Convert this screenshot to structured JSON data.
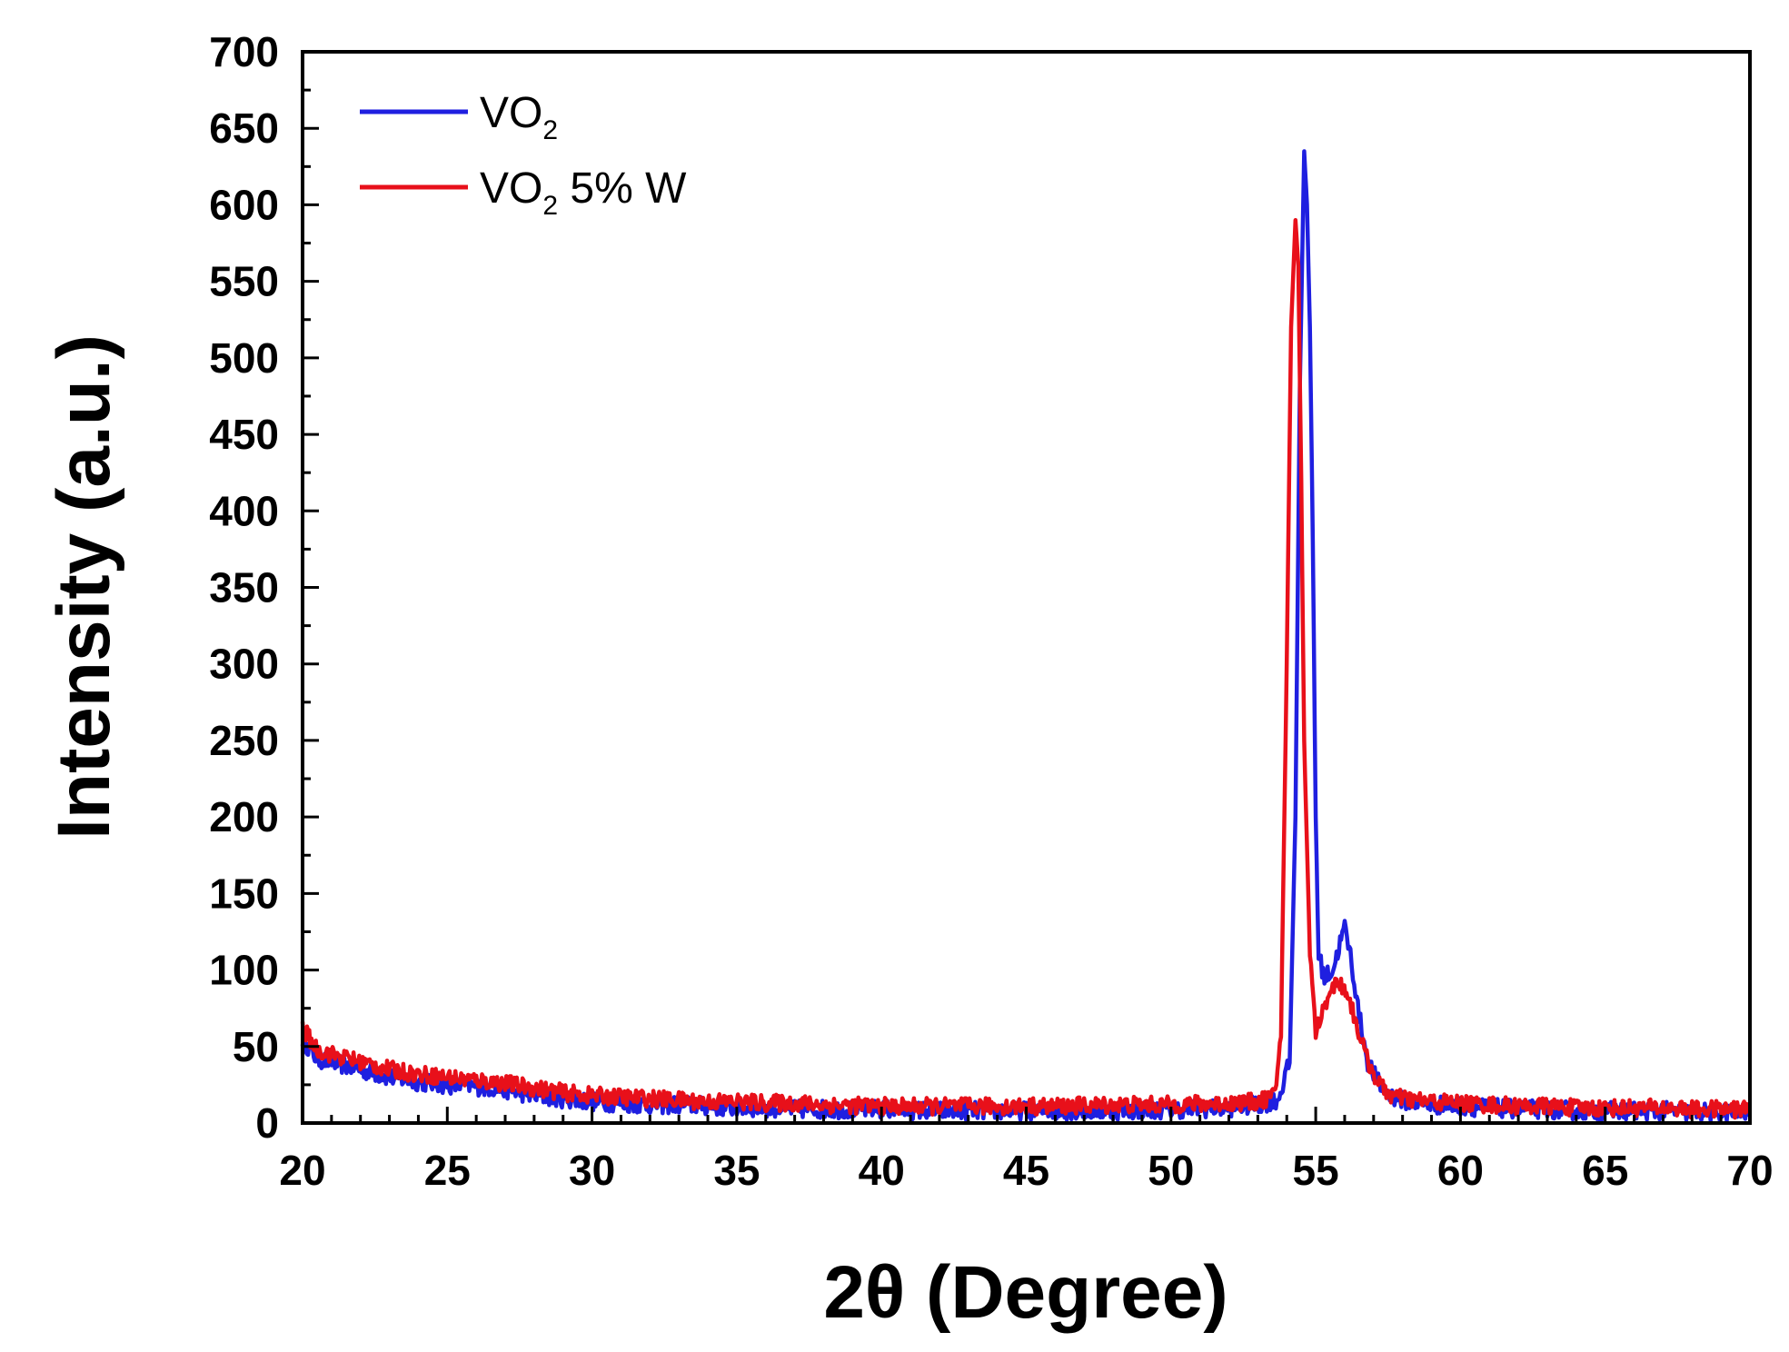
{
  "chart_data": {
    "type": "line",
    "title": "",
    "xlabel": "2θ (Degree)",
    "ylabel": "Intensity (a.u.)",
    "xlim": [
      20,
      70
    ],
    "ylim": [
      0,
      700
    ],
    "xticks": [
      20,
      25,
      30,
      35,
      40,
      45,
      50,
      55,
      60,
      65,
      70
    ],
    "yticks": [
      0,
      50,
      100,
      150,
      200,
      250,
      300,
      350,
      400,
      450,
      500,
      550,
      600,
      650,
      700
    ],
    "grid": false,
    "legend": {
      "placement": "top-left"
    },
    "series": [
      {
        "name": "VO2",
        "legend_main": "VO",
        "legend_sub": "2",
        "legend_suffix": "",
        "color": "#1f1fe0",
        "points": [
          [
            20,
            55
          ],
          [
            20.5,
            42
          ],
          [
            21,
            40
          ],
          [
            22,
            35
          ],
          [
            23,
            30
          ],
          [
            24,
            27
          ],
          [
            25,
            25
          ],
          [
            26,
            24
          ],
          [
            27,
            22
          ],
          [
            28,
            18
          ],
          [
            29,
            16
          ],
          [
            30,
            14
          ],
          [
            31,
            13
          ],
          [
            32,
            12
          ],
          [
            33,
            12
          ],
          [
            34,
            11
          ],
          [
            35,
            10
          ],
          [
            36,
            10
          ],
          [
            37,
            9
          ],
          [
            38,
            9
          ],
          [
            40,
            9
          ],
          [
            42,
            8
          ],
          [
            44,
            8
          ],
          [
            46,
            8
          ],
          [
            48,
            8
          ],
          [
            50,
            9
          ],
          [
            52,
            10
          ],
          [
            53,
            12
          ],
          [
            53.7,
            15
          ],
          [
            54.1,
            40
          ],
          [
            54.3,
            200
          ],
          [
            54.45,
            480
          ],
          [
            54.6,
            635
          ],
          [
            54.7,
            600
          ],
          [
            54.8,
            520
          ],
          [
            54.9,
            380
          ],
          [
            55.0,
            200
          ],
          [
            55.1,
            110
          ],
          [
            55.3,
            95
          ],
          [
            55.6,
            100
          ],
          [
            55.8,
            115
          ],
          [
            56.0,
            128
          ],
          [
            56.2,
            110
          ],
          [
            56.5,
            70
          ],
          [
            56.8,
            40
          ],
          [
            57.2,
            25
          ],
          [
            57.6,
            18
          ],
          [
            58,
            15
          ],
          [
            59,
            12
          ],
          [
            60,
            11
          ],
          [
            61,
            10
          ],
          [
            62,
            9
          ],
          [
            63,
            9
          ],
          [
            64,
            8
          ],
          [
            65,
            8
          ],
          [
            66,
            8
          ],
          [
            67,
            8
          ],
          [
            68,
            7
          ],
          [
            69,
            7
          ],
          [
            70,
            7
          ]
        ]
      },
      {
        "name": "VO2 5% W",
        "legend_main": "VO",
        "legend_sub": "2",
        "legend_suffix": " 5% W",
        "color": "#e8101a",
        "points": [
          [
            20,
            62
          ],
          [
            20.5,
            48
          ],
          [
            21,
            45
          ],
          [
            22,
            40
          ],
          [
            23,
            35
          ],
          [
            24,
            32
          ],
          [
            25,
            30
          ],
          [
            26,
            28
          ],
          [
            27,
            26
          ],
          [
            28,
            23
          ],
          [
            29,
            20
          ],
          [
            30,
            18
          ],
          [
            31,
            17
          ],
          [
            32,
            16
          ],
          [
            33,
            15
          ],
          [
            34,
            14
          ],
          [
            35,
            14
          ],
          [
            36,
            13
          ],
          [
            37,
            13
          ],
          [
            38,
            12
          ],
          [
            40,
            11
          ],
          [
            42,
            11
          ],
          [
            44,
            11
          ],
          [
            46,
            11
          ],
          [
            48,
            12
          ],
          [
            50,
            12
          ],
          [
            52,
            13
          ],
          [
            53,
            14
          ],
          [
            53.6,
            18
          ],
          [
            53.8,
            60
          ],
          [
            54.0,
            300
          ],
          [
            54.15,
            520
          ],
          [
            54.3,
            590
          ],
          [
            54.4,
            560
          ],
          [
            54.5,
            420
          ],
          [
            54.6,
            250
          ],
          [
            54.8,
            110
          ],
          [
            55.0,
            60
          ],
          [
            55.2,
            70
          ],
          [
            55.5,
            88
          ],
          [
            55.8,
            92
          ],
          [
            56.1,
            85
          ],
          [
            56.4,
            65
          ],
          [
            56.8,
            40
          ],
          [
            57.2,
            25
          ],
          [
            57.6,
            18
          ],
          [
            58,
            16
          ],
          [
            59,
            14
          ],
          [
            60,
            13
          ],
          [
            61,
            12
          ],
          [
            62,
            11
          ],
          [
            63,
            11
          ],
          [
            64,
            10
          ],
          [
            65,
            10
          ],
          [
            66,
            10
          ],
          [
            67,
            10
          ],
          [
            68,
            9
          ],
          [
            69,
            9
          ],
          [
            70,
            9
          ]
        ]
      }
    ]
  }
}
